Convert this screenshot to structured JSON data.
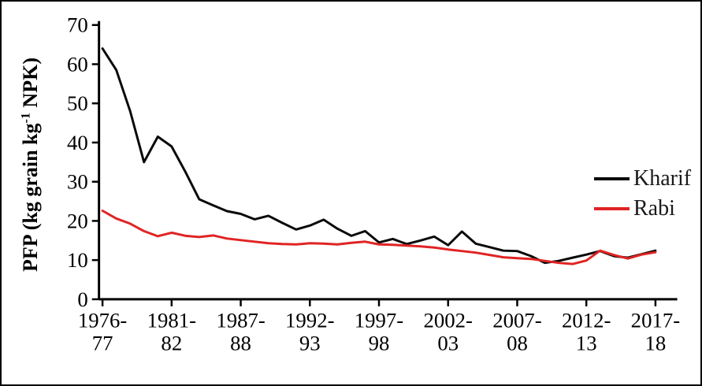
{
  "figure": {
    "background": "#ffffff",
    "border_color": "#000000"
  },
  "chart_data": {
    "type": "line",
    "title": "",
    "xlabel": "",
    "ylabel": {
      "prefix": "PFP (kg grain kg",
      "superscript": "-1",
      "suffix": " NPK)"
    },
    "ylim": [
      0,
      70
    ],
    "yticks": [
      0,
      10,
      20,
      30,
      40,
      50,
      60,
      70
    ],
    "n_points": 41,
    "x_tick_every": 5,
    "x_tick_labels": [
      [
        "1976-",
        "77"
      ],
      [
        "1981-",
        "82"
      ],
      [
        "1987-",
        "88"
      ],
      [
        "1992-",
        "93"
      ],
      [
        "1997-",
        "98"
      ],
      [
        "2002-",
        "03"
      ],
      [
        "2007-",
        "08"
      ],
      [
        "2012-",
        "13"
      ],
      [
        "2017-",
        "18"
      ]
    ],
    "grid": false,
    "legend_position": "right",
    "axis_color": "#000000",
    "series": [
      {
        "name": "Kharif",
        "color": "#0a0a0a",
        "values": [
          64,
          58.5,
          48,
          35,
          41.5,
          39,
          32.5,
          25.5,
          24,
          22.5,
          21.8,
          20.4,
          21.3,
          19.5,
          17.8,
          18.8,
          20.3,
          18,
          16.2,
          17.4,
          14.5,
          15.4,
          14.1,
          15,
          16,
          13.8,
          17.3,
          14.2,
          13.3,
          12.4,
          12.3,
          11,
          9.3,
          9.8,
          10.6,
          11.4,
          12.3,
          11,
          10.6,
          11.5,
          12.4
        ]
      },
      {
        "name": "Rabi",
        "color": "#e02424",
        "values": [
          22.6,
          20.6,
          19.3,
          17.4,
          16.1,
          17,
          16.2,
          15.9,
          16.3,
          15.5,
          15.1,
          14.7,
          14.3,
          14.1,
          14,
          14.3,
          14.2,
          14,
          14.4,
          14.7,
          14,
          13.9,
          13.7,
          13.5,
          13.2,
          12.7,
          12.3,
          11.9,
          11.3,
          10.7,
          10.5,
          10.3,
          9.8,
          9.3,
          9,
          9.9,
          12.4,
          11.3,
          10.4,
          11.4,
          12
        ]
      }
    ]
  }
}
